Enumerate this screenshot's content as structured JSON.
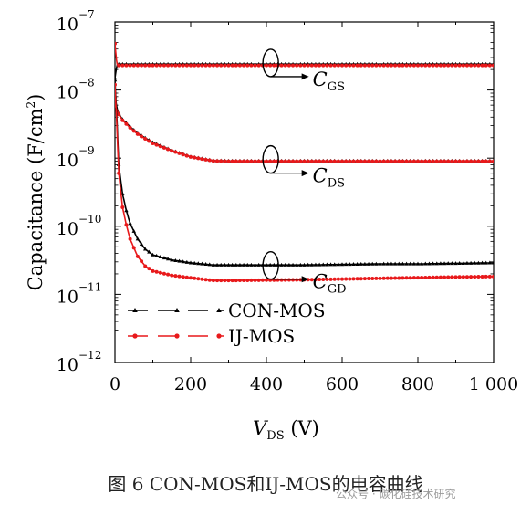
{
  "chart_data": {
    "type": "line",
    "xlabel": "V",
    "xlabel_sub": "DS",
    "xlabel_unit": " (V)",
    "ylabel": "Capacitance (F/cm",
    "ylabel_sup": "2",
    "ylabel_close": ")",
    "xlim": [
      0,
      1000
    ],
    "ylim": [
      1e-12,
      1e-07
    ],
    "yscale": "log",
    "xticks": [
      0,
      200,
      400,
      600,
      800,
      1000
    ],
    "xtick_labels": [
      "0",
      "200",
      "400",
      "600",
      "800",
      "1 000"
    ],
    "yticks": [
      1e-12,
      1e-11,
      1e-10,
      1e-09,
      1e-08,
      1e-07
    ],
    "ytick_base": "10",
    "ytick_exps": [
      "−12",
      "−11",
      "−10",
      "−9",
      "−8",
      "−7"
    ],
    "legend": [
      "CON-MOS",
      "IJ-MOS"
    ],
    "legend_position": "bottom-left",
    "series": [
      {
        "name": "CON-MOS",
        "group": "CGS",
        "color": "#000000",
        "x": [
          0,
          5,
          10,
          20,
          50,
          100,
          200,
          300,
          400,
          500,
          600,
          700,
          800,
          900,
          1000
        ],
        "y": [
          1.5e-08,
          2.3e-08,
          2.4e-08,
          2.4e-08,
          2.4e-08,
          2.4e-08,
          2.4e-08,
          2.4e-08,
          2.4e-08,
          2.4e-08,
          2.4e-08,
          2.4e-08,
          2.4e-08,
          2.4e-08,
          2.4e-08
        ]
      },
      {
        "name": "IJ-MOS",
        "group": "CGS",
        "color": "#e8191b",
        "x": [
          0,
          5,
          10,
          20,
          50,
          100,
          200,
          300,
          400,
          500,
          600,
          700,
          800,
          900,
          1000
        ],
        "y": [
          4.8e-08,
          2.4e-08,
          2.3e-08,
          2.3e-08,
          2.3e-08,
          2.3e-08,
          2.3e-08,
          2.3e-08,
          2.3e-08,
          2.3e-08,
          2.3e-08,
          2.3e-08,
          2.3e-08,
          2.3e-08,
          2.3e-08
        ]
      },
      {
        "name": "CON-MOS",
        "group": "CDS",
        "color": "#000000",
        "x": [
          0,
          5,
          10,
          20,
          40,
          60,
          100,
          150,
          200,
          260,
          300,
          400,
          500,
          600,
          700,
          800,
          900,
          1000
        ],
        "y": [
          8e-09,
          5.5e-09,
          4.5e-09,
          3.7e-09,
          2.9e-09,
          2.3e-09,
          1.7e-09,
          1.3e-09,
          1.05e-09,
          9.2e-10,
          9.1e-10,
          9.1e-10,
          9.1e-10,
          9.1e-10,
          9.1e-10,
          9.1e-10,
          9.1e-10,
          9.1e-10
        ]
      },
      {
        "name": "IJ-MOS",
        "group": "CDS",
        "color": "#e8191b",
        "x": [
          0,
          5,
          10,
          20,
          40,
          60,
          100,
          150,
          200,
          260,
          300,
          400,
          500,
          600,
          700,
          800,
          900,
          1000
        ],
        "y": [
          6e-09,
          5.2e-09,
          4.4e-09,
          3.6e-09,
          2.8e-09,
          2.25e-09,
          1.65e-09,
          1.28e-09,
          1.04e-09,
          9.1e-10,
          9e-10,
          9e-10,
          9e-10,
          9e-10,
          9e-10,
          9e-10,
          9e-10,
          9e-10
        ]
      },
      {
        "name": "CON-MOS",
        "group": "CGD",
        "color": "#000000",
        "x": [
          0,
          5,
          10,
          20,
          30,
          40,
          60,
          80,
          100,
          150,
          200,
          260,
          300,
          400,
          500,
          600,
          700,
          800,
          900,
          1000
        ],
        "y": [
          1.4e-08,
          4e-09,
          8e-10,
          3e-10,
          1.7e-10,
          1.1e-10,
          6.5e-11,
          4.6e-11,
          3.8e-11,
          3.2e-11,
          2.9e-11,
          2.7e-11,
          2.7e-11,
          2.7e-11,
          2.7e-11,
          2.75e-11,
          2.8e-11,
          2.8e-11,
          2.85e-11,
          2.9e-11
        ]
      },
      {
        "name": "IJ-MOS",
        "group": "CGD",
        "color": "#e8191b",
        "x": [
          0,
          5,
          10,
          20,
          30,
          40,
          60,
          80,
          100,
          150,
          200,
          260,
          300,
          400,
          500,
          600,
          700,
          800,
          900,
          1000
        ],
        "y": [
          1.2e-08,
          3e-09,
          6e-10,
          1.9e-10,
          1.05e-10,
          6.5e-11,
          3.6e-11,
          2.6e-11,
          2.2e-11,
          1.9e-11,
          1.75e-11,
          1.6e-11,
          1.6e-11,
          1.62e-11,
          1.64e-11,
          1.68e-11,
          1.72e-11,
          1.76e-11,
          1.8e-11,
          1.83e-11
        ]
      }
    ],
    "annotations": [
      {
        "label": "C",
        "sub": "GS",
        "at_x": 510,
        "at_y": 2.35e-08
      },
      {
        "label": "C",
        "sub": "DS",
        "at_x": 510,
        "at_y": 9e-10
      },
      {
        "label": "C",
        "sub": "GD",
        "at_x": 510,
        "at_y": 2.5e-11
      }
    ]
  },
  "caption": "图 6 CON-MOS和IJ-MOS的电容曲线",
  "watermark": "公众号 · 碳化硅技术研究"
}
